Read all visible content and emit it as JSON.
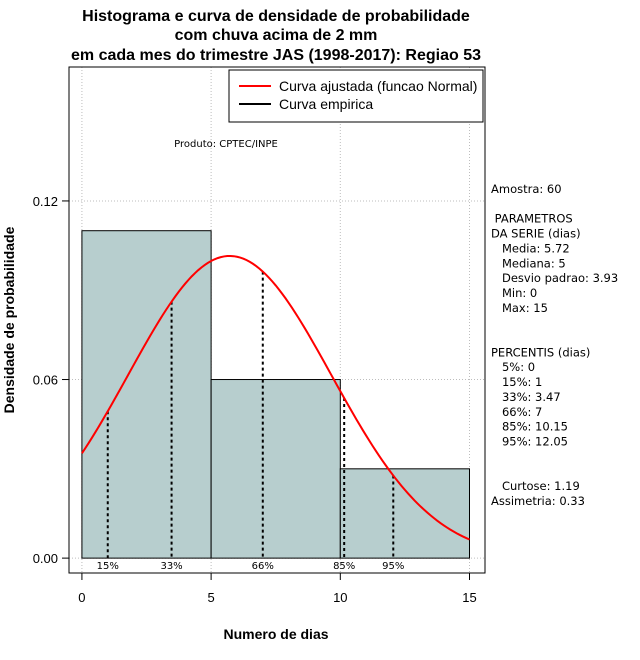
{
  "chart_data": {
    "type": "bar",
    "title_lines": [
      "Histograma e curva de densidade de probabilidade",
      "com chuva acima de 2 mm",
      "em cada mes do trimestre JAS (1998-2017): Regiao 53"
    ],
    "xlabel": "Numero de dias",
    "ylabel": "Densidade de probabilidade",
    "xlim": [
      -0.5,
      15.6
    ],
    "ylim": [
      -0.005,
      0.165
    ],
    "x_ticks": [
      "0",
      "5",
      "10",
      "15"
    ],
    "y_ticks": [
      "0.00",
      "0.06",
      "0.12"
    ],
    "grid": true,
    "bins": [
      {
        "start": 0,
        "end": 5,
        "density": 0.11
      },
      {
        "start": 5,
        "end": 10,
        "density": 0.06
      },
      {
        "start": 10,
        "end": 15,
        "density": 0.03
      }
    ],
    "bar_color": "#b7cece",
    "normal_curve": {
      "mean": 5.72,
      "sd": 3.93,
      "from": 0,
      "to": 15,
      "color": "#ff0000"
    },
    "percentile_lines": [
      {
        "label": "15%",
        "x": 1
      },
      {
        "label": "33%",
        "x": 3.47
      },
      {
        "label": "66%",
        "x": 7
      },
      {
        "label": "85%",
        "x": 10.15
      },
      {
        "label": "95%",
        "x": 12.05
      }
    ],
    "legend": {
      "position": "top-right",
      "entries": [
        {
          "label": "Curva ajustada (funcao Normal)",
          "color": "#ff0000"
        },
        {
          "label": "Curva empirica",
          "color": "#000000"
        }
      ]
    },
    "annotation": "Produto: CPTEC/INPE"
  },
  "side_panel": {
    "lines": [
      "Amostra: 60",
      "",
      " PARAMETROS",
      "DA SERIE (dias)",
      "   Media: 5.72",
      "   Mediana: 5",
      "   Desvio padrao: 3.93",
      "   Min: 0",
      "   Max: 15",
      "",
      "",
      "PERCENTIS (dias)",
      "   5%: 0",
      "   15%: 1",
      "   33%: 3.47",
      "   66%: 7",
      "   85%: 10.15",
      "   95%: 12.05",
      "",
      "",
      "   Curtose: 1.19",
      "Assimetria: 0.33"
    ]
  }
}
